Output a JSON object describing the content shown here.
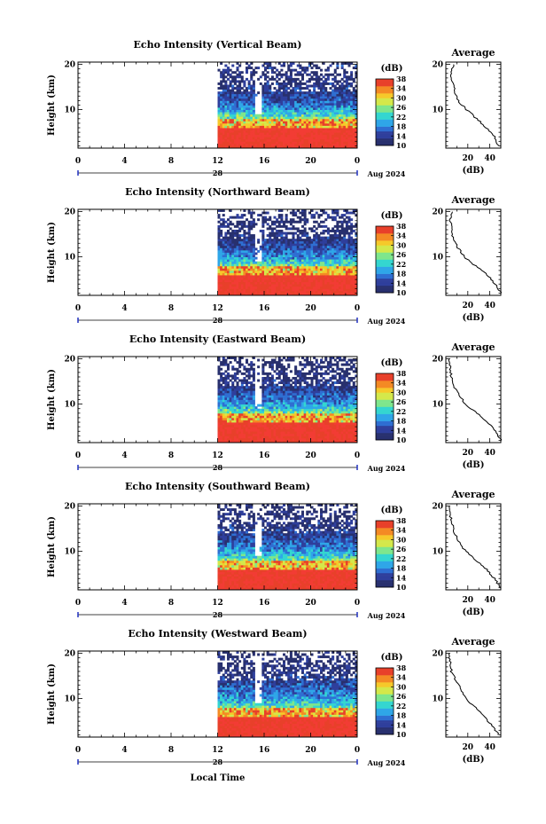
{
  "figure": {
    "xlabel": "Local Time",
    "ylabel": "Height (km)",
    "date_text": "Aug 2024",
    "day_label": "28",
    "avg_title": "Average",
    "avg_xlabel": "(dB)",
    "cbar_unit": "(dB)"
  },
  "colormap": [
    "#28306e",
    "#2f3f9c",
    "#2f6fd2",
    "#2fa6e8",
    "#34d6d0",
    "#7ee68c",
    "#d4e84a",
    "#f6c92a",
    "#f48a24",
    "#e8402a",
    "#f23c34"
  ],
  "chart_data": [
    {
      "type": "heatmap",
      "title": "Echo Intensity (Vertical Beam)",
      "x_ticks": [
        "0",
        "4",
        "8",
        "12",
        "16",
        "20",
        "0"
      ],
      "y_ticks": [
        "20",
        "10"
      ],
      "xlim": [
        0,
        24
      ],
      "ylim": [
        1.5,
        20.5
      ],
      "data_start_hour": 12,
      "colorbar": {
        "label": "(dB)",
        "ticks": [
          "38",
          "34",
          "30",
          "26",
          "22",
          "18",
          "14",
          "10"
        ],
        "range": [
          10,
          38
        ]
      },
      "average_profile": {
        "title": "Average",
        "xlabel": "(dB)",
        "x_ticks": [
          "20",
          "40"
        ],
        "y_ticks": [
          "20",
          "10"
        ],
        "xlim": [
          0,
          50
        ],
        "heights": [
          2,
          4,
          6,
          8,
          10,
          12,
          14,
          16,
          18,
          20
        ],
        "values": [
          48,
          44,
          37,
          28,
          19,
          11,
          8,
          6,
          5,
          7
        ]
      }
    },
    {
      "type": "heatmap",
      "title": "Echo Intensity (Northward Beam)",
      "x_ticks": [
        "0",
        "4",
        "8",
        "12",
        "16",
        "20",
        "0"
      ],
      "y_ticks": [
        "20",
        "10"
      ],
      "xlim": [
        0,
        24
      ],
      "ylim": [
        1.5,
        20.5
      ],
      "data_start_hour": 12,
      "colorbar": {
        "label": "(dB)",
        "ticks": [
          "38",
          "34",
          "30",
          "26",
          "22",
          "18",
          "14",
          "10"
        ],
        "range": [
          10,
          38
        ]
      },
      "average_profile": {
        "title": "Average",
        "xlabel": "(dB)",
        "x_ticks": [
          "20",
          "40"
        ],
        "y_ticks": [
          "20",
          "10"
        ],
        "xlim": [
          0,
          50
        ],
        "heights": [
          2,
          4,
          6,
          8,
          10,
          12,
          14,
          16,
          18,
          20
        ],
        "values": [
          50,
          45,
          38,
          27,
          17,
          11,
          7,
          5,
          4,
          6
        ]
      }
    },
    {
      "type": "heatmap",
      "title": "Echo Intensity (Eastward Beam)",
      "x_ticks": [
        "0",
        "4",
        "8",
        "12",
        "16",
        "20",
        "0"
      ],
      "y_ticks": [
        "20",
        "10"
      ],
      "xlim": [
        0,
        24
      ],
      "ylim": [
        1.5,
        20.5
      ],
      "data_start_hour": 12,
      "colorbar": {
        "label": "(dB)",
        "ticks": [
          "38",
          "34",
          "30",
          "26",
          "22",
          "18",
          "14",
          "10"
        ],
        "range": [
          10,
          38
        ]
      },
      "average_profile": {
        "title": "Average",
        "xlabel": "(dB)",
        "x_ticks": [
          "20",
          "40"
        ],
        "y_ticks": [
          "20",
          "10"
        ],
        "xlim": [
          0,
          50
        ],
        "heights": [
          2,
          4,
          6,
          8,
          10,
          12,
          14,
          16,
          18,
          20
        ],
        "values": [
          50,
          45,
          38,
          28,
          18,
          12,
          7,
          5,
          4,
          3
        ]
      }
    },
    {
      "type": "heatmap",
      "title": "Echo Intensity (Southward Beam)",
      "x_ticks": [
        "0",
        "4",
        "8",
        "12",
        "16",
        "20",
        "0"
      ],
      "y_ticks": [
        "20",
        "10"
      ],
      "xlim": [
        0,
        24
      ],
      "ylim": [
        1.5,
        20.5
      ],
      "data_start_hour": 12,
      "colorbar": {
        "label": "(dB)",
        "ticks": [
          "38",
          "34",
          "30",
          "26",
          "22",
          "18",
          "14",
          "10"
        ],
        "range": [
          10,
          38
        ]
      },
      "average_profile": {
        "title": "Average",
        "xlabel": "(dB)",
        "x_ticks": [
          "20",
          "40"
        ],
        "y_ticks": [
          "20",
          "10"
        ],
        "xlim": [
          0,
          50
        ],
        "heights": [
          2,
          4,
          6,
          8,
          10,
          12,
          14,
          16,
          18,
          20
        ],
        "values": [
          50,
          44,
          37,
          28,
          18,
          12,
          8,
          6,
          4,
          3
        ]
      }
    },
    {
      "type": "heatmap",
      "title": "Echo Intensity (Westward Beam)",
      "x_ticks": [
        "0",
        "4",
        "8",
        "12",
        "16",
        "20",
        "0"
      ],
      "y_ticks": [
        "20",
        "10"
      ],
      "xlim": [
        0,
        24
      ],
      "ylim": [
        1.5,
        20.5
      ],
      "data_start_hour": 12,
      "colorbar": {
        "label": "(dB)",
        "ticks": [
          "38",
          "34",
          "30",
          "26",
          "22",
          "18",
          "14",
          "10"
        ],
        "range": [
          10,
          38
        ]
      },
      "average_profile": {
        "title": "Average",
        "xlabel": "(dB)",
        "x_ticks": [
          "20",
          "40"
        ],
        "y_ticks": [
          "20",
          "10"
        ],
        "xlim": [
          0,
          50
        ],
        "heights": [
          2,
          4,
          6,
          8,
          10,
          12,
          14,
          16,
          18,
          20
        ],
        "values": [
          48,
          42,
          35,
          27,
          18,
          14,
          9,
          5,
          4,
          3
        ]
      }
    }
  ]
}
